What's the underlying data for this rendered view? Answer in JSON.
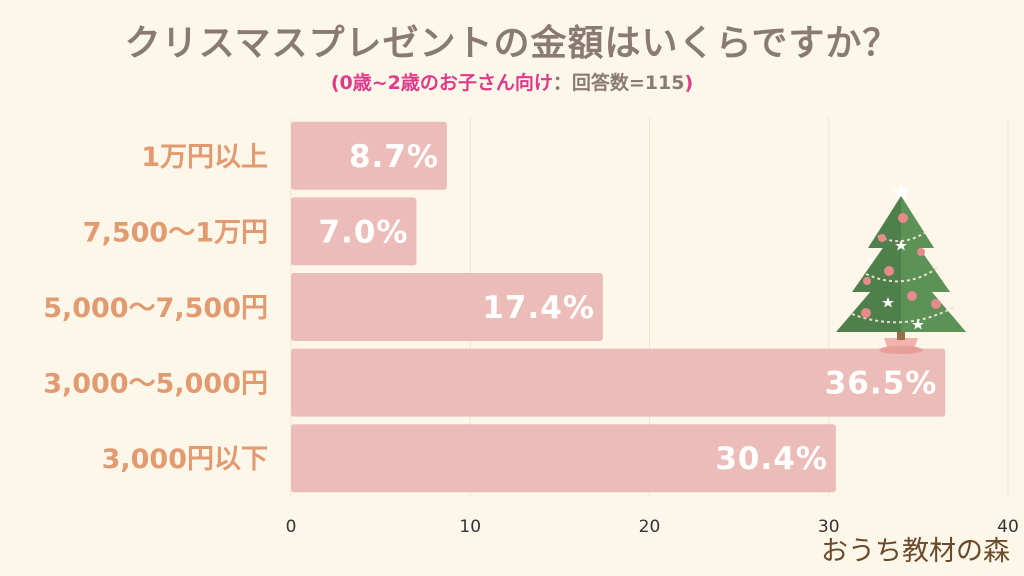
{
  "title": "クリスマスプレゼントの金額はいくらですか？",
  "subtitle": {
    "open": "(",
    "highlight": "0歳~2歳のお子さん向け",
    "rest": "：回答数=115",
    "close": ")"
  },
  "logo": "おうち教材の森",
  "colors": {
    "bar": "#ecbdb8",
    "grid": "#eee3cf",
    "category_label": "#e29a70",
    "title": "#8a7a74",
    "highlight": "#e0398a"
  },
  "chart_data": {
    "type": "bar",
    "orientation": "horizontal",
    "categories": [
      "1万円以上",
      "7,500〜1万円",
      "5,000〜7,500円",
      "3,000〜5,000円",
      "3,000円以下"
    ],
    "values": [
      8.7,
      7.0,
      17.4,
      36.5,
      30.4
    ],
    "value_labels": [
      "8.7%",
      "7.0%",
      "17.4%",
      "36.5%",
      "30.4%"
    ],
    "xlim": [
      0,
      40
    ],
    "xticks": [
      0,
      10,
      20,
      30,
      40
    ],
    "grid": true,
    "legend": "none"
  },
  "decoration": {
    "icon": "christmas-tree-icon"
  }
}
